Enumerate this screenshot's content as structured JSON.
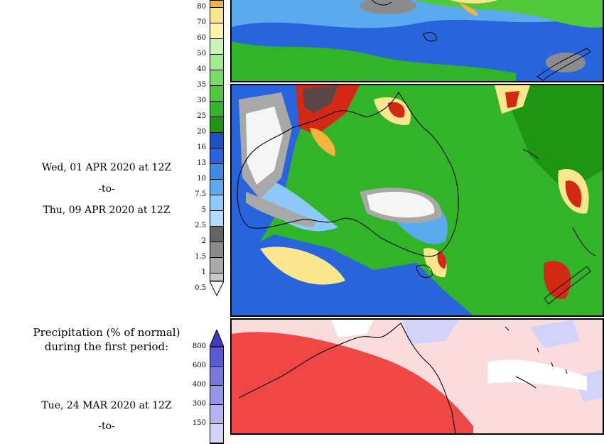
{
  "upper_panel": {
    "period_start": "Wed, 01 APR 2020 at 12Z",
    "to_label": "-to-",
    "period_end": "Thu, 09 APR 2020 at 12Z",
    "colorbar_labels": [
      "80",
      "70",
      "60",
      "50",
      "40",
      "35",
      "30",
      "25",
      "20",
      "16",
      "13",
      "10",
      "7.5",
      "5",
      "2.5",
      "2",
      "1.5",
      "1",
      "0.5"
    ],
    "colorbar_colors": [
      "#f5b43c",
      "#fae68c",
      "#fff5a8",
      "#c8f5b4",
      "#a0eb8c",
      "#78dc64",
      "#50c83c",
      "#32b428",
      "#1e9614",
      "#1e50c8",
      "#2864dc",
      "#3c8ce6",
      "#5aaaf0",
      "#8cc8f8",
      "#b4dcfa",
      "#646464",
      "#8c8c8c",
      "#a8a8a8",
      "#c8c8c8"
    ]
  },
  "lower_panel": {
    "heading_line1": "Precipitation (% of normal)",
    "heading_line2": "during the first period:",
    "period_start": "Tue, 24 MAR 2020 at 12Z",
    "to_label": "-to-",
    "colorbar_labels": [
      "800",
      "600",
      "400",
      "300",
      "150"
    ],
    "colorbar_colors": [
      "#5a5ad2",
      "#7878dc",
      "#9696e6",
      "#b4b4f0",
      "#d2d2fa"
    ]
  },
  "map_colors": {
    "ocean_blue": "#2864dc",
    "land_green": "#32b428",
    "dry_gray": "#a0a0a0",
    "no_rain": "#f5f5f5",
    "heavy_red": "#d22814",
    "below_normal_red": "#f04646",
    "near_normal_pink": "#fadcdc"
  }
}
